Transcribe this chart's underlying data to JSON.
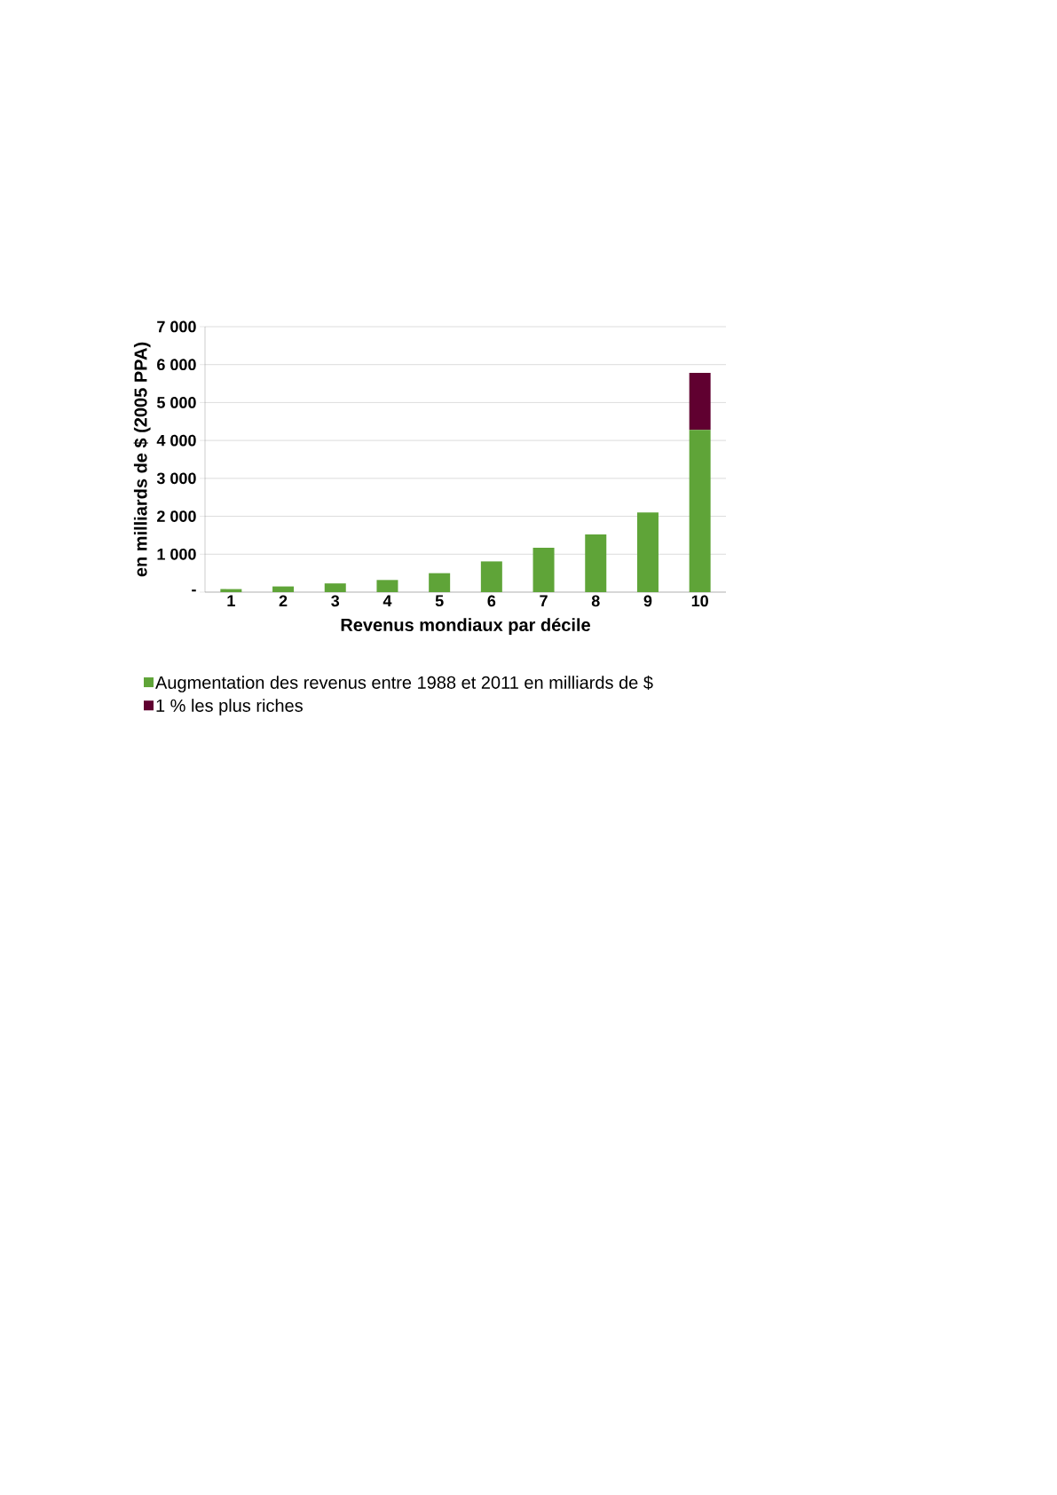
{
  "chart_data": {
    "type": "bar",
    "stacked": true,
    "xlabel": "Revenus mondiaux par décile",
    "ylabel": "en milliards de $ (2005 PPA)",
    "categories": [
      "1",
      "2",
      "3",
      "4",
      "5",
      "6",
      "7",
      "8",
      "9",
      "10"
    ],
    "series": [
      {
        "name": "Augmentation des revenus entre 1988 et 2011 en milliards de $",
        "color": "#5fa438",
        "values": [
          80,
          150,
          230,
          320,
          500,
          810,
          1170,
          1520,
          2100,
          4280
        ]
      },
      {
        "name": "1 % les plus riches",
        "color": "#600030",
        "values": [
          null,
          null,
          null,
          null,
          null,
          null,
          null,
          null,
          null,
          1500
        ]
      }
    ],
    "ylim": [
      0,
      7000
    ],
    "yticks": [
      {
        "value": 0,
        "label": "-"
      },
      {
        "value": 1000,
        "label": "1 000"
      },
      {
        "value": 2000,
        "label": "2 000"
      },
      {
        "value": 3000,
        "label": "3 000"
      },
      {
        "value": 4000,
        "label": "4 000"
      },
      {
        "value": 5000,
        "label": "5 000"
      },
      {
        "value": 6000,
        "label": "6 000"
      },
      {
        "value": 7000,
        "label": "7 000"
      }
    ],
    "grid": "y",
    "legend": "bottom left"
  }
}
